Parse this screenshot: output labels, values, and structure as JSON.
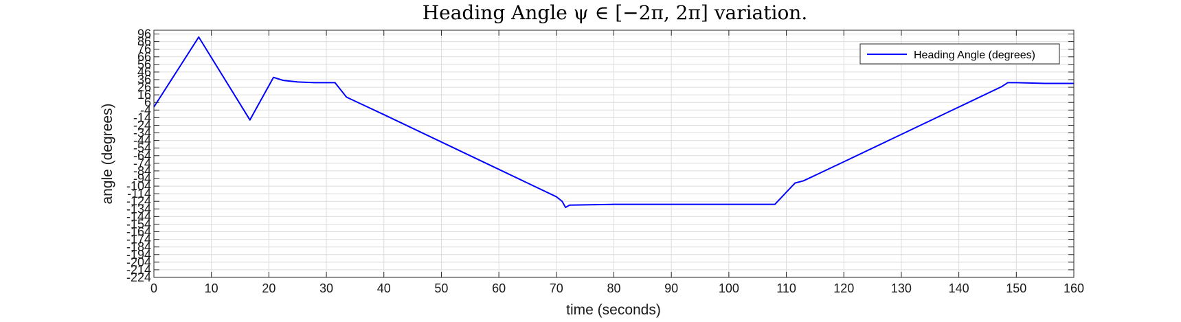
{
  "chart_data": {
    "type": "line",
    "title": "Heading Angle ψ ∈ [−2π, 2π] variation.",
    "xlabel": "time (seconds)",
    "ylabel": "angle (degrees)",
    "xlim": [
      0,
      160
    ],
    "ylim": [
      -224,
      101
    ],
    "x_ticks": [
      0,
      10,
      20,
      30,
      40,
      50,
      60,
      70,
      80,
      90,
      100,
      110,
      120,
      130,
      140,
      150,
      160
    ],
    "x_tick_labels": [
      "0",
      "10",
      "20",
      "30",
      "40",
      "50",
      "60",
      "70",
      "80",
      "90",
      "100",
      "110",
      "120",
      "130",
      "140",
      "150",
      "160"
    ],
    "y_ticks": [
      96,
      86,
      76,
      66,
      56,
      46,
      36,
      26,
      16,
      6,
      -4,
      -14,
      -24,
      -34,
      -44,
      -54,
      -64,
      -74,
      -84,
      -94,
      -104,
      -114,
      -124,
      -134,
      -144,
      -154,
      -164,
      -174,
      -184,
      -194,
      -204,
      -214,
      -224
    ],
    "y_tick_labels": [
      "96",
      "86",
      "76",
      "66",
      "56",
      "46",
      "36",
      "26",
      "16",
      "6",
      "-4",
      "-14",
      "-24",
      "-34",
      "-44",
      "-54",
      "-64",
      "-74",
      "-84",
      "-94",
      "-104",
      "-114",
      "-124",
      "-134",
      "-144",
      "-154",
      "-164",
      "-174",
      "-184",
      "-194",
      "-204",
      "-214",
      "-224"
    ],
    "grid": true,
    "legend_position": "top-right",
    "series": [
      {
        "name": "Heading Angle (degrees)",
        "color": "#0000ff",
        "x": [
          0,
          7.8,
          16.7,
          20.8,
          22.5,
          25,
          28,
          31.5,
          33.5,
          40,
          50,
          60,
          70,
          71,
          71.6,
          72.3,
          80,
          90,
          100,
          108,
          111.5,
          113,
          120,
          130,
          140,
          147.5,
          148.5,
          150,
          155,
          160
        ],
        "y": [
          0,
          92,
          -17,
          39,
          35,
          33,
          32,
          32,
          13,
          -10,
          -46,
          -82,
          -118,
          -124,
          -132,
          -129,
          -128,
          -128,
          -128,
          -128,
          -100,
          -97,
          -72,
          -36,
          0,
          27,
          32,
          32,
          31,
          31
        ]
      }
    ]
  }
}
